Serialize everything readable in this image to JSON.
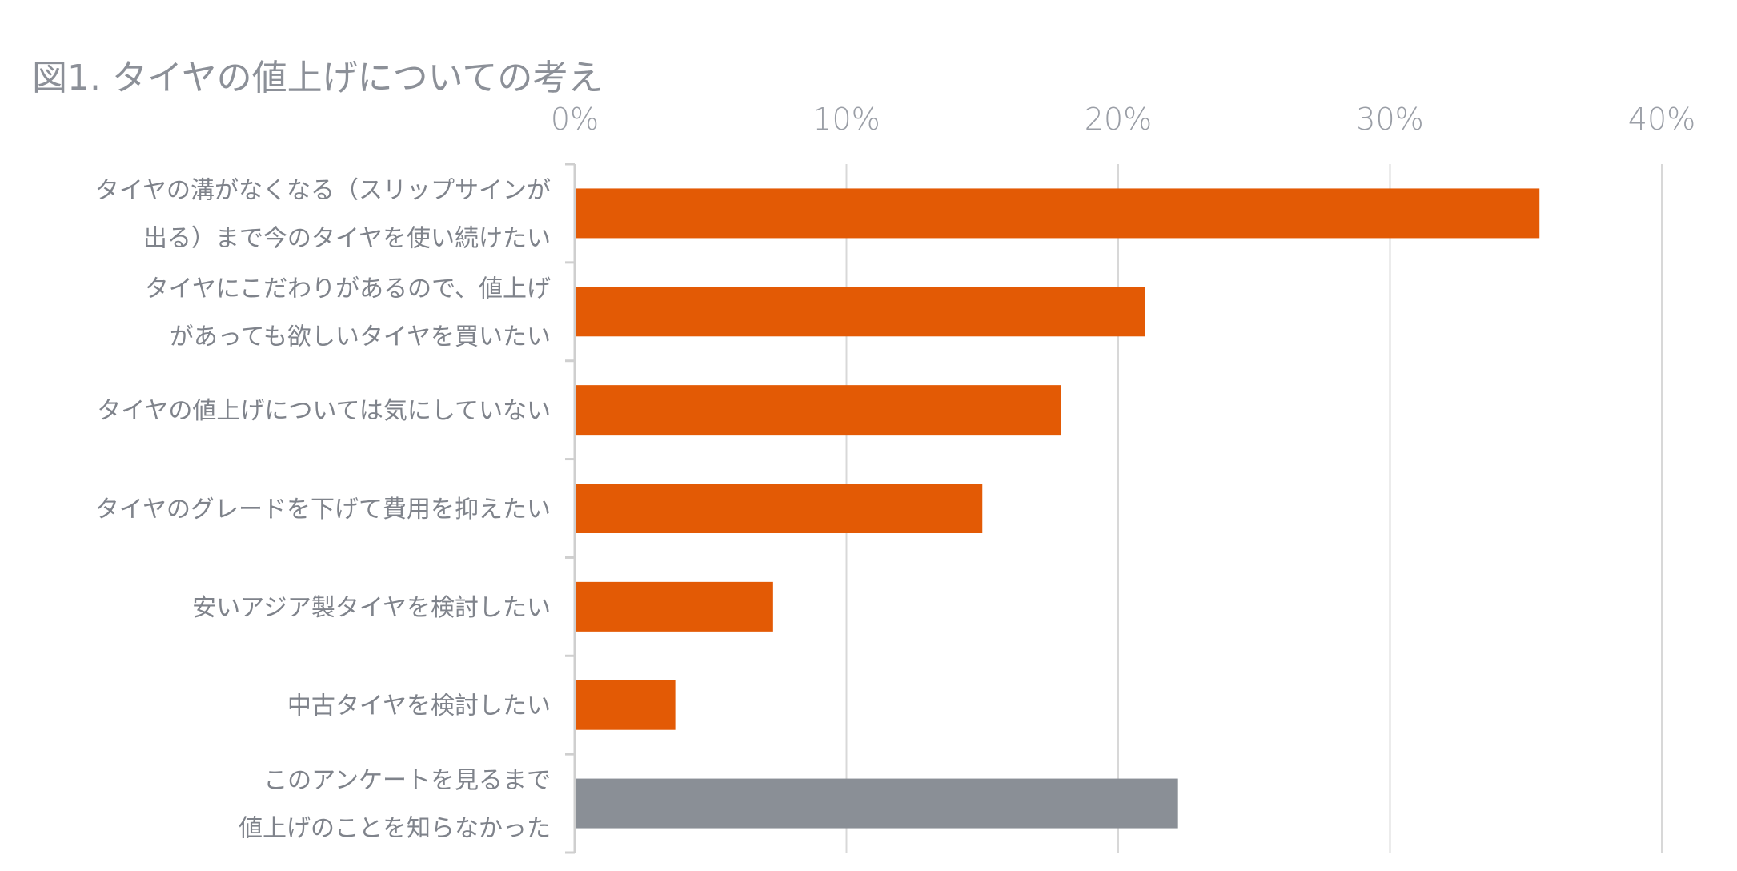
{
  "chart_data": {
    "type": "bar",
    "orientation": "horizontal",
    "title": "図1. タイヤの値上げについての考え",
    "xlim": [
      0,
      40
    ],
    "x_ticks": [
      "0%",
      "10%",
      "20%",
      "30%",
      "40%"
    ],
    "x_tick_values": [
      0,
      10,
      20,
      30,
      40
    ],
    "x_axis_position": "top",
    "grid": "vertical",
    "categories": [
      [
        "タイヤの溝がなくなる（スリップサインが",
        "出る）まで今のタイヤを使い続けたい"
      ],
      [
        "タイヤにこだわりがあるので、値上げ",
        "があっても欲しいタイヤを買いたい"
      ],
      [
        "タイヤの値上げについては気にしていない"
      ],
      [
        "タイヤのグレードを下げて費用を抑えたい"
      ],
      [
        "安いアジア製タイヤを検討したい"
      ],
      [
        "中古タイヤを検討したい"
      ],
      [
        "このアンケートを見るまで",
        "値上げのことを知らなかった"
      ]
    ],
    "values": [
      35.5,
      21.0,
      17.9,
      15.0,
      7.3,
      3.7,
      22.2
    ],
    "bar_colors": [
      "#e35a05",
      "#e35a05",
      "#e35a05",
      "#e35a05",
      "#e35a05",
      "#e35a05",
      "#8a8f96"
    ]
  },
  "colors": {
    "accent": "#e35a05",
    "muted_bar": "#8a8f96",
    "grid": "#d8d8d8",
    "axis": "#cfcfcf",
    "text": "#8a8e96"
  }
}
